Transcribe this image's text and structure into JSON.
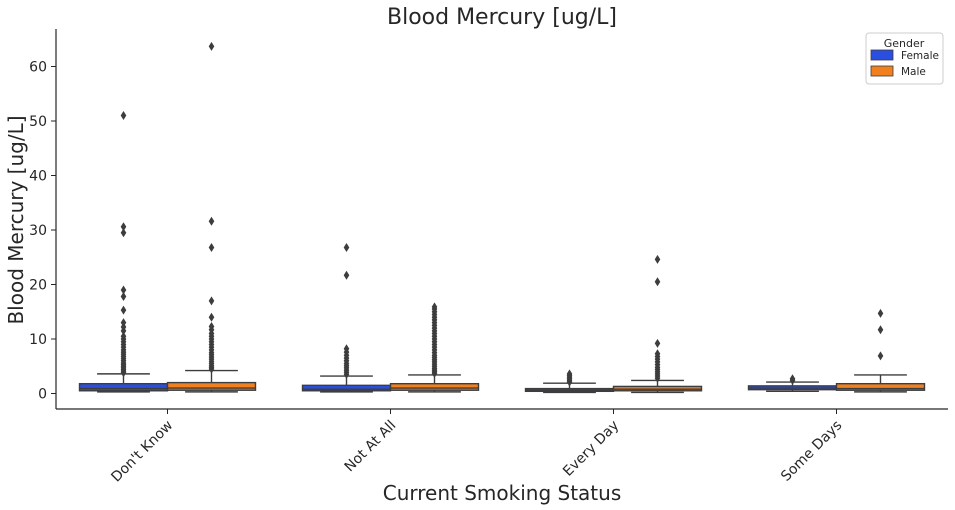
{
  "chart_data": {
    "type": "box",
    "title": "Blood Mercury [ug/L]",
    "xlabel": "Current Smoking Status",
    "ylabel": "Blood Mercury [ug/L]",
    "ylim": [
      -3,
      67
    ],
    "yticks": [
      0,
      10,
      20,
      30,
      40,
      50,
      60
    ],
    "grid": false,
    "legend": {
      "title": "Gender",
      "placement": "top-right"
    },
    "categories": [
      "Don't Know",
      "Not At All",
      "Every Day",
      "Some Days"
    ],
    "series": [
      {
        "name": "Female",
        "color": "#2a4fe0",
        "boxes": [
          {
            "whisker_low": 0.3,
            "q1": 0.5,
            "median": 0.9,
            "q3": 1.8,
            "whisker_high": 3.6,
            "outliers": [
              3.8,
              4.1,
              4.4,
              4.7,
              5.0,
              5.3,
              5.6,
              6.0,
              6.4,
              6.8,
              7.2,
              7.6,
              8.0,
              8.5,
              9.0,
              9.5,
              10.0,
              10.5,
              11.5,
              12.2,
              13.0,
              15.3,
              17.8,
              19.0,
              29.5,
              30.6,
              51.0
            ]
          },
          {
            "whisker_low": 0.3,
            "q1": 0.5,
            "median": 0.8,
            "q3": 1.5,
            "whisker_high": 3.2,
            "outliers": [
              3.5,
              3.9,
              4.3,
              4.7,
              5.1,
              5.5,
              6.0,
              6.5,
              7.0,
              7.6,
              8.2,
              21.7,
              26.8
            ]
          },
          {
            "whisker_low": 0.2,
            "q1": 0.4,
            "median": 0.6,
            "q3": 0.9,
            "whisker_high": 1.9,
            "outliers": [
              2.1,
              2.4,
              2.7,
              3.0,
              3.3,
              3.6
            ]
          },
          {
            "whisker_low": 0.4,
            "q1": 0.7,
            "median": 1.0,
            "q3": 1.4,
            "whisker_high": 2.1,
            "outliers": [
              2.4,
              2.7
            ]
          }
        ]
      },
      {
        "name": "Male",
        "color": "#f08020",
        "boxes": [
          {
            "whisker_low": 0.3,
            "q1": 0.6,
            "median": 1.0,
            "q3": 2.0,
            "whisker_high": 4.2,
            "outliers": [
              4.5,
              4.8,
              5.1,
              5.5,
              5.9,
              6.3,
              6.7,
              7.1,
              7.5,
              8.0,
              8.5,
              9.0,
              9.5,
              10.0,
              10.5,
              11.0,
              11.7,
              12.3,
              14.0,
              17.0,
              26.8,
              31.6,
              63.7
            ]
          },
          {
            "whisker_low": 0.3,
            "q1": 0.6,
            "median": 1.0,
            "q3": 1.8,
            "whisker_high": 3.4,
            "outliers": [
              3.7,
              4.0,
              4.3,
              4.6,
              5.0,
              5.4,
              5.8,
              6.2,
              6.6,
              7.0,
              7.5,
              8.0,
              8.5,
              9.0,
              9.5,
              10.0,
              10.5,
              11.0,
              11.5,
              12.0,
              12.5,
              13.0,
              13.5,
              14.0,
              14.5,
              15.0,
              15.5,
              15.9
            ]
          },
          {
            "whisker_low": 0.2,
            "q1": 0.5,
            "median": 0.8,
            "q3": 1.3,
            "whisker_high": 2.4,
            "outliers": [
              2.8,
              3.2,
              3.6,
              4.0,
              4.4,
              4.8,
              5.3,
              5.8,
              6.3,
              6.8,
              7.3,
              9.2,
              20.5,
              24.6
            ]
          },
          {
            "whisker_low": 0.3,
            "q1": 0.6,
            "median": 0.9,
            "q3": 1.8,
            "whisker_high": 3.4,
            "outliers": [
              6.9,
              11.7,
              14.7
            ]
          }
        ]
      }
    ]
  }
}
